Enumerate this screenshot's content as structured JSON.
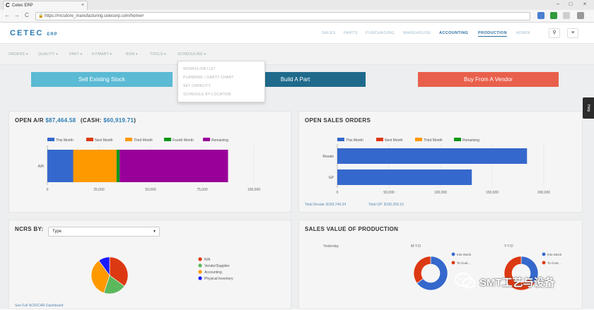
{
  "browser": {
    "tab_title": "Cetec ERP",
    "url": "https://mcsdore_manufacturing.cetecerp.com/home#",
    "back": "←",
    "forward": "→",
    "reload": "C"
  },
  "header": {
    "logo": "CETEC",
    "logo_suffix": "ERP",
    "nav": [
      "SALES",
      "PARTS",
      "PURCHASING",
      "WAREHOUSE",
      "ACCOUNTING",
      "PRODUCTION",
      "ADMIN"
    ]
  },
  "subnav": {
    "items": [
      "ORDERS ▾",
      "QUALITY ▾",
      "PART ▾",
      "KITMART ▾",
      "BOM ▾",
      "TOOLS ▾",
      "SCHEDULING ▾"
    ]
  },
  "dropdown": {
    "items": [
      "WORKFLOW LIST",
      "PLANNING / GANTT CHART",
      "SET CAPACITY",
      "SCHEDULE BY LOCATION"
    ]
  },
  "actions": {
    "sell": "Sell Existing Stock",
    "build": "Build A Part",
    "buy": "Buy From A Vendor"
  },
  "colors": {
    "blue": "#3568cc",
    "red": "#dc3912",
    "orange": "#ff9900",
    "green": "#109618",
    "purple": "#990099",
    "btn_teal": "#5bbad4",
    "btn_navy": "#1f6a8c",
    "btn_red": "#e8604c"
  },
  "open_ar": {
    "title_prefix": "OPEN A/R",
    "amount": "$87,464.58",
    "cash_label": "(CASH:",
    "cash": "$60,919.71",
    "cash_close": ")",
    "chart_data": {
      "type": "bar",
      "orientation": "horizontal",
      "stacked": true,
      "categories": [
        "A/R"
      ],
      "series": [
        {
          "name": "This Month",
          "values": [
            12500
          ]
        },
        {
          "name": "Next Month",
          "values": [
            0
          ]
        },
        {
          "name": "Third Month",
          "values": [
            21000
          ]
        },
        {
          "name": "Fourth Month",
          "values": [
            1500
          ]
        },
        {
          "name": "Remaining",
          "values": [
            52500
          ]
        }
      ],
      "xlim": [
        0,
        100000
      ],
      "xticks": [
        "0",
        "25,000",
        "50,000",
        "75,000",
        "100,000"
      ],
      "legend": "top"
    }
  },
  "open_sales": {
    "title": "OPEN SALES ORDERS",
    "total_resale": "Total Resale: $183,744.34",
    "total_gp": "Total GP: $130,259.10",
    "chart_data": {
      "type": "bar",
      "orientation": "horizontal",
      "categories": [
        "Resale",
        "GP"
      ],
      "series": [
        {
          "name": "This Month",
          "values": [
            183744,
            130259
          ]
        },
        {
          "name": "Next Month",
          "values": [
            0,
            0
          ]
        },
        {
          "name": "Third Month",
          "values": [
            0,
            0
          ]
        },
        {
          "name": "Remaining",
          "values": [
            0,
            0
          ]
        }
      ],
      "xlim": [
        0,
        200000
      ],
      "xticks": [
        "0",
        "50,000",
        "100,000",
        "150,000",
        "200,000"
      ],
      "legend": "top"
    }
  },
  "ncrs": {
    "title": "NCRS BY:",
    "select_value": "Type",
    "link": "See Full NCR/CAR Dashboard",
    "chart_data": {
      "type": "pie",
      "slices": [
        {
          "name": "N/A",
          "value": 35
        },
        {
          "name": "Vendor/Supplier",
          "value": 20
        },
        {
          "name": "Accounting",
          "value": 35
        },
        {
          "name": "Physical Inventory",
          "value": 10
        }
      ]
    }
  },
  "sales_value": {
    "title": "SALES VALUE OF PRODUCTION",
    "col_yesterday": "Yesterday",
    "col_mtd": "M-T-D",
    "col_ytd": "Y-T-D",
    "chart_data": [
      {
        "type": "pie",
        "title": "M-T-D",
        "slices": [
          {
            "name": "Into Stock",
            "value": 65
          },
          {
            "name": "To Cust...",
            "value": 35
          }
        ]
      },
      {
        "type": "pie",
        "title": "Y-T-D",
        "slices": [
          {
            "name": "Into Stock",
            "value": 35
          },
          {
            "name": "To Cust...",
            "value": 65
          }
        ]
      }
    ]
  },
  "help_label": "Help",
  "watermark": "SMT工艺与设备"
}
